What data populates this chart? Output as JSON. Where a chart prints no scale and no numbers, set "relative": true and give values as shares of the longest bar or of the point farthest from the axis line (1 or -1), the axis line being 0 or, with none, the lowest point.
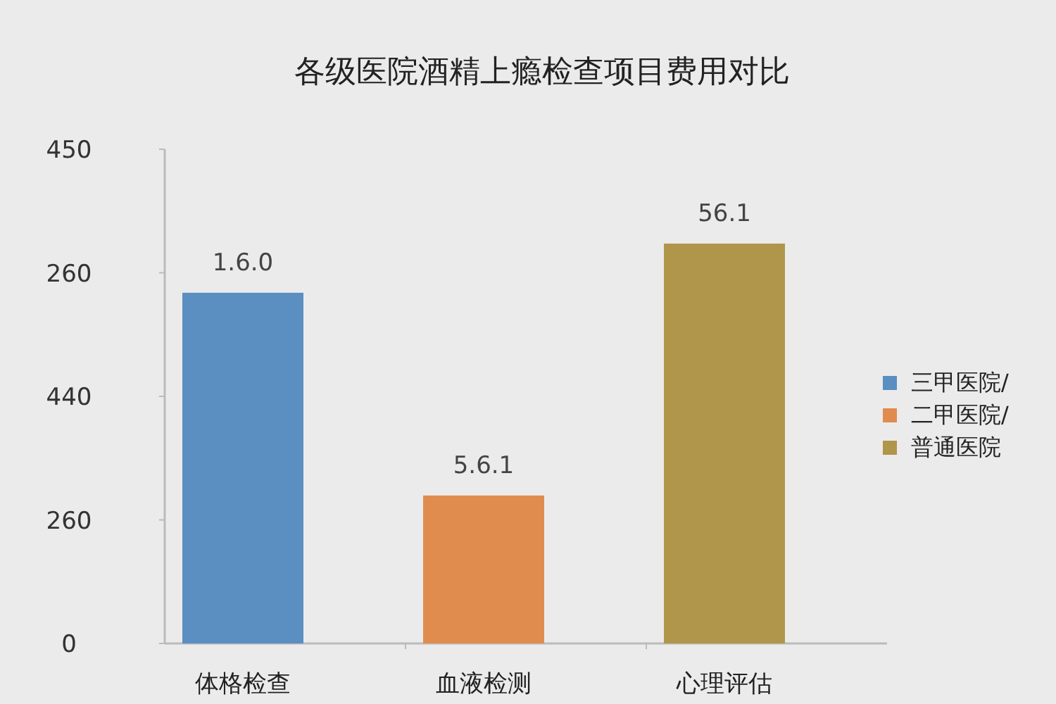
{
  "chart_data": {
    "type": "bar",
    "title": "各级医院酒精上瘾检查项目费用对比",
    "categories": [
      "体格检查",
      "血液检测",
      "心理评估"
    ],
    "relative": true,
    "series": [
      {
        "name": "三甲医院/",
        "color": "#5b8ec1",
        "values": [
          0.877,
          null,
          null
        ]
      },
      {
        "name": "二甲医院/",
        "color": "#e08c4f",
        "values": [
          null,
          0.37,
          null
        ]
      },
      {
        "name": "普通医院",
        "color": "#b0964a",
        "values": [
          null,
          null,
          1
        ]
      }
    ],
    "annotations": [
      "450",
      "260",
      "440",
      "260",
      "0",
      {
        "text": "1.6.0",
        "x": "体格检查",
        "y": 0.877
      },
      {
        "text": "5.6.1",
        "x": "血液检测",
        "y": 0.37
      },
      {
        "text": "56.1",
        "x": "心理评估",
        "y": 1
      }
    ],
    "legend": "right"
  }
}
